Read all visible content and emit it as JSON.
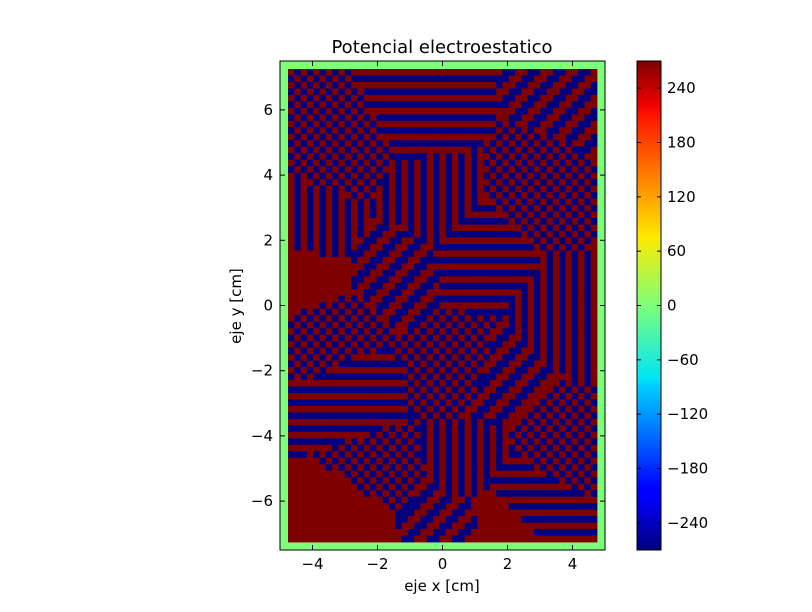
{
  "chart_data": {
    "type": "heatmap",
    "title": "Potencial electroestatico",
    "xlabel": "eje x [cm]",
    "ylabel": "eje y [cm]",
    "xlim": [
      -5,
      5
    ],
    "ylim": [
      -7.5,
      7.5
    ],
    "xticks": [
      -4,
      -2,
      0,
      2,
      4
    ],
    "yticks": [
      -6,
      -4,
      -2,
      0,
      2,
      4,
      6
    ],
    "xtick_labels": [
      "−4",
      "−2",
      "0",
      "2",
      "4"
    ],
    "ytick_labels": [
      "−6",
      "−4",
      "−2",
      "0",
      "2",
      "4",
      "6"
    ],
    "colormap": "jet",
    "value_range": [
      -270,
      270
    ],
    "boundary_value": 0,
    "interior_pattern": "alternating stripes and checkerboard patches of ±270",
    "colorbar": {
      "ticks": [
        240,
        180,
        120,
        60,
        0,
        -60,
        -120,
        -180,
        -240
      ],
      "labels": [
        "240",
        "180",
        "120",
        "60",
        "0",
        "−60",
        "−120",
        "−180",
        "−240"
      ]
    },
    "colors": {
      "high": "#7f0000",
      "low": "#00007f",
      "zero": "#7dff7a"
    }
  }
}
